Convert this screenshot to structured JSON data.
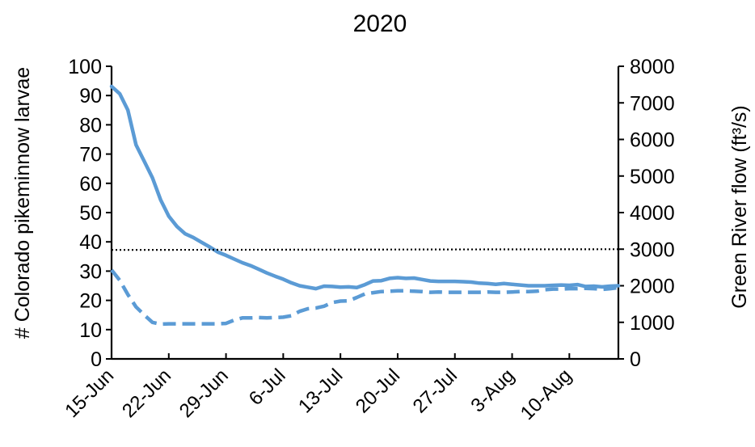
{
  "chart_data": {
    "type": "line",
    "title": "2020",
    "ylabel": "# Colorado pikeminnow  larvae",
    "y2label": "Green River flow (ft³/s)",
    "x_categories": [
      "15-Jun",
      "22-Jun",
      "29-Jun",
      "6-Jul",
      "13-Jul",
      "20-Jul",
      "27-Jul",
      "3-Aug",
      "10-Aug"
    ],
    "x_range_days": [
      0,
      62
    ],
    "ylim": [
      0,
      100
    ],
    "y2lim": [
      0,
      8000
    ],
    "y_ticks": [
      "0",
      "10",
      "20",
      "30",
      "40",
      "50",
      "60",
      "70",
      "80",
      "90",
      "100"
    ],
    "y2_ticks": [
      "0",
      "1000",
      "2000",
      "3000",
      "4000",
      "5000",
      "6000",
      "7000",
      "8000"
    ],
    "grid": false,
    "legend": "none",
    "colors": {
      "series": "#5B9BD5",
      "threshold": "#000000",
      "axis": "#000000"
    },
    "series": [
      {
        "style": "solid",
        "axis": "right",
        "x": [
          0,
          1,
          2,
          3,
          4,
          5,
          6,
          7,
          8,
          9,
          10,
          11,
          12,
          13,
          14,
          15,
          16,
          17,
          18,
          19,
          20,
          21,
          22,
          23,
          24,
          25,
          26,
          27,
          28,
          29,
          30,
          31,
          32,
          33,
          34,
          35,
          36,
          37,
          38,
          39,
          40,
          41,
          42,
          43,
          44,
          45,
          46,
          47,
          48,
          49,
          50,
          51,
          52,
          53,
          54,
          55,
          56,
          57,
          58,
          59,
          60,
          61,
          62
        ],
        "values": [
          7450,
          7250,
          6800,
          5850,
          5400,
          4950,
          4350,
          3900,
          3620,
          3420,
          3320,
          3190,
          3060,
          2920,
          2830,
          2730,
          2630,
          2550,
          2450,
          2350,
          2260,
          2180,
          2080,
          2000,
          1960,
          1920,
          1990,
          1980,
          1960,
          1970,
          1950,
          2030,
          2130,
          2140,
          2200,
          2220,
          2200,
          2210,
          2170,
          2130,
          2120,
          2120,
          2120,
          2110,
          2100,
          2070,
          2060,
          2040,
          2060,
          2040,
          2020,
          2000,
          2000,
          2000,
          2010,
          2020,
          2010,
          2030,
          1980,
          1990,
          1970,
          1990,
          2000
        ]
      },
      {
        "style": "dashed",
        "axis": "right",
        "x": [
          0,
          1,
          2,
          3,
          4,
          5,
          6,
          7,
          8,
          9,
          10,
          11,
          12,
          13,
          14,
          15,
          16,
          17,
          18,
          19,
          20,
          21,
          22,
          23,
          24,
          25,
          26,
          27,
          28,
          29,
          30,
          31,
          32,
          33,
          34,
          35,
          36,
          37,
          38,
          39,
          40,
          41,
          42,
          43,
          44,
          45,
          46,
          47,
          48,
          49,
          50,
          51,
          52,
          53,
          54,
          55,
          56,
          57,
          58,
          59,
          60,
          61,
          62
        ],
        "values": [
          2430,
          2150,
          1760,
          1420,
          1200,
          1000,
          950,
          960,
          960,
          960,
          960,
          960,
          960,
          960,
          970,
          1060,
          1120,
          1120,
          1130,
          1120,
          1130,
          1140,
          1180,
          1300,
          1370,
          1390,
          1440,
          1540,
          1580,
          1590,
          1680,
          1780,
          1810,
          1840,
          1850,
          1860,
          1860,
          1850,
          1840,
          1820,
          1830,
          1820,
          1820,
          1820,
          1820,
          1820,
          1830,
          1820,
          1820,
          1830,
          1840,
          1840,
          1850,
          1890,
          1910,
          1910,
          1920,
          1920,
          1930,
          1920,
          1900,
          1920,
          1950
        ]
      },
      {
        "style": "dotted",
        "axis": "right",
        "x": [
          0,
          62
        ],
        "values": [
          2980,
          3000
        ]
      }
    ]
  }
}
